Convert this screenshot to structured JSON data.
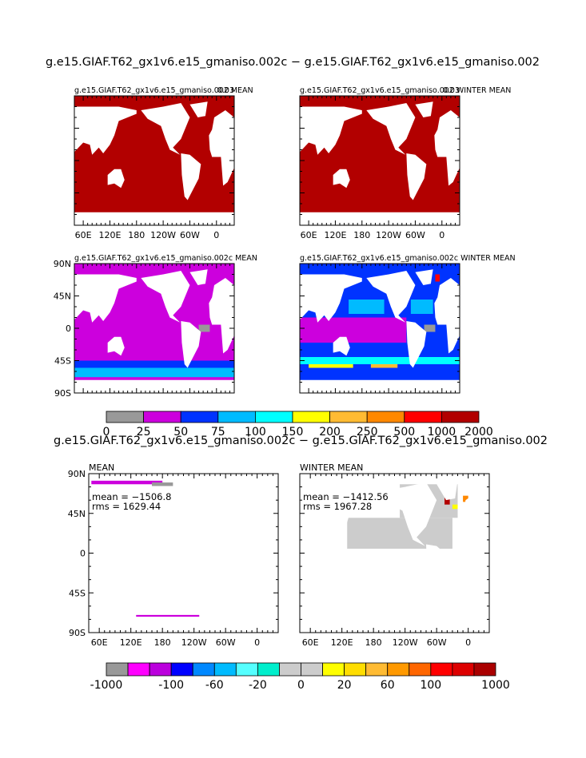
{
  "top_title": "g.e15.GIAF.T62_gx1v6.e15_gmaniso.002c − g.e15.GIAF.T62_gx1v6.e15_gmaniso.002",
  "bottom_title": "g.e15.GIAF.T62_gx1v6.e15_gmaniso.002c − g.e15.GIAF.T62_gx1v6.e15_gmaniso.002",
  "lon_labels": [
    "60E",
    "120E",
    "180",
    "120W",
    "60W",
    "0"
  ],
  "lat_labels": [
    "90N",
    "45N",
    "0",
    "45S",
    "90S"
  ],
  "panels": [
    {
      "title": "g.e15.GIAF.T62_gx1v6.e15_gmaniso.002 MEAN",
      "corner": "0.03"
    },
    {
      "title": "g.e15.GIAF.T62_gx1v6.e15_gmaniso.002 WINTER MEAN",
      "corner": "0.03"
    },
    {
      "title": "g.e15.GIAF.T62_gx1v6.e15_gmaniso.002c MEAN"
    },
    {
      "title": "g.e15.GIAF.T62_gx1v6.e15_gmaniso.002c WINTER MEAN"
    },
    {
      "title": "MEAN",
      "mean": "mean = −1506.8",
      "rms": "rms = 1629.44"
    },
    {
      "title": "WINTER MEAN",
      "mean": "mean = −1412.56",
      "rms": "rms = 1967.28"
    }
  ],
  "colorbar1": {
    "colors": [
      "#999999",
      "#cc00dd",
      "#0033ff",
      "#00bbff",
      "#00ffff",
      "#ffff00",
      "#ffbb33",
      "#ff8800",
      "#ff0000",
      "#b20000"
    ],
    "levels": [
      0,
      25,
      50,
      75,
      100,
      150,
      200,
      250,
      500,
      1000,
      2000
    ]
  },
  "colorbar2": {
    "colors": [
      "#999999",
      "#ff00ff",
      "#bb00dd",
      "#0000ff",
      "#0088ff",
      "#00bbff",
      "#55ffff",
      "#00eecc",
      "#cccccc",
      "#cccccc",
      "#ffff00",
      "#ffdd00",
      "#ffbb33",
      "#ff9900",
      "#ff6600",
      "#ff0000",
      "#dd0000",
      "#aa0000"
    ],
    "levels": [
      -1000,
      null,
      null,
      -100,
      null,
      -60,
      null,
      -20,
      null,
      0,
      null,
      20,
      null,
      60,
      null,
      100,
      null,
      null,
      1000
    ]
  }
}
